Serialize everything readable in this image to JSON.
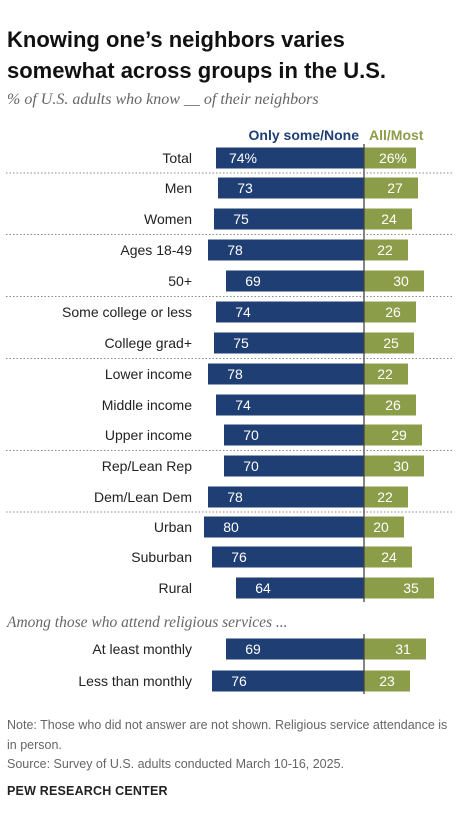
{
  "title": "Knowing one’s neighbors varies somewhat across groups in the U.S.",
  "subtitle": "% of U.S. adults who know __ of their neighbors",
  "notes": {
    "note": "Note: Those who did not answer are not shown. Religious service attendance is in person.",
    "source": "Source: Survey of U.S. adults conducted March 10-16, 2025.",
    "org": "PEW RESEARCH CENTER"
  },
  "colors": {
    "some_none": "#1f3e74",
    "all_most": "#8c9d4a",
    "divider": "#444444",
    "label": "#222222",
    "section": "#666666"
  },
  "chart_data": {
    "type": "bar",
    "orientation": "diverging-horizontal",
    "section_label": "Among those who attend religious services ...",
    "series": [
      {
        "name": "Only some/None",
        "color": "#1f3e74",
        "values": [
          74,
          73,
          75,
          78,
          69,
          74,
          75,
          78,
          74,
          70,
          70,
          78,
          80,
          76,
          64,
          69,
          76
        ],
        "labels": [
          "74%",
          "73",
          "75",
          "78",
          "69",
          "74",
          "75",
          "78",
          "74",
          "70",
          "70",
          "78",
          "80",
          "76",
          "64",
          "69",
          "76"
        ]
      },
      {
        "name": "All/Most",
        "color": "#8c9d4a",
        "values": [
          26,
          27,
          24,
          22,
          30,
          26,
          25,
          22,
          26,
          29,
          30,
          22,
          20,
          24,
          35,
          31,
          23
        ],
        "labels": [
          "26%",
          "27",
          "24",
          "22",
          "30",
          "26",
          "25",
          "22",
          "26",
          "29",
          "30",
          "22",
          "20",
          "24",
          "35",
          "31",
          "23"
        ]
      }
    ],
    "categories": [
      "Total",
      "Men",
      "Women",
      "Ages 18-49",
      "50+",
      "Some college or less",
      "College grad+",
      "Lower income",
      "Middle income",
      "Upper income",
      "Rep/Lean Rep",
      "Dem/Lean Dem",
      "Urban",
      "Suburban",
      "Rural",
      "At least monthly",
      "Less than monthly"
    ],
    "group_breaks_after": [
      0,
      2,
      4,
      6,
      9,
      11
    ],
    "section_before": 15,
    "xlim": [
      0,
      100
    ],
    "grid": false,
    "legend": "top"
  }
}
